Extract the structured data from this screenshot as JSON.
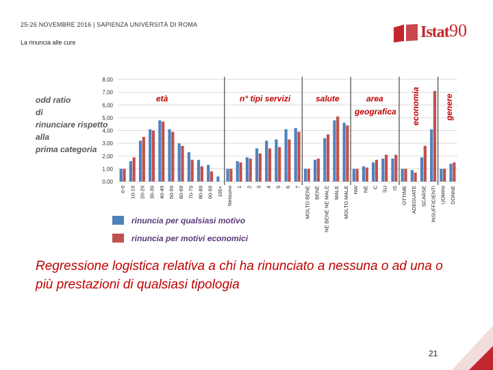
{
  "header": {
    "event": "25-26 NOVEMBRE 2016 | SAPIENZA UNIVERSITÀ DI ROMA",
    "subtitle": "La rinuncia alle cure"
  },
  "logo": {
    "text": "Istat",
    "number": "90",
    "accent": "#c1272d"
  },
  "caption": "Regressione logistica relativa a chi ha rinunciato a nessuna o ad una o più prestazioni di qualsiasi tipologia",
  "page_number": "21",
  "colors": {
    "series1": "#4f81bd",
    "series2": "#c0504d",
    "label_red": "#c00000"
  },
  "chart_data": {
    "type": "bar",
    "ylabel": "odd ratio di rinunciare rispetto alla prima categoria",
    "ylim": [
      0,
      8
    ],
    "yticks": [
      "0,00",
      "1,00",
      "2,00",
      "3,00",
      "4,00",
      "5,00",
      "6,00",
      "7,00",
      "8,00"
    ],
    "group_labels": [
      "età",
      "n° tipi servizi",
      "salute",
      "area geografica",
      "economia",
      "genere"
    ],
    "categories": [
      "0-9",
      "10-19",
      "20-29",
      "30-39",
      "40-49",
      "50-59",
      "60-69",
      "70-79",
      "80-89",
      "90-99",
      "100+",
      "Nessuno",
      "1",
      "2",
      "3",
      "4",
      "5",
      "6",
      "7",
      "MOLTO BENE",
      "BENE",
      "NE BENE NE MALE",
      "MALE",
      "MOLTO MALE",
      "NW",
      "NE",
      "C",
      "SU",
      "IS",
      "OTTIME",
      "ADEGUATE",
      "SCARSE",
      "INSUFFICIENTI",
      "UOMINI",
      "DONNE"
    ],
    "series": [
      {
        "name": "rinuncia per qualsiasi motivo",
        "values": [
          1.0,
          1.6,
          3.2,
          4.1,
          4.8,
          4.1,
          3.0,
          2.3,
          1.7,
          1.3,
          0.4,
          1.0,
          1.6,
          1.9,
          2.6,
          3.2,
          3.3,
          4.1,
          4.2,
          1.0,
          1.7,
          3.4,
          4.8,
          4.6,
          1.0,
          1.2,
          1.5,
          1.8,
          1.8,
          1.0,
          0.9,
          1.9,
          4.1,
          1.0,
          1.4
        ],
        "values_dummy": null
      },
      {
        "name": "rinuncia per motivi economici",
        "values": [
          1.0,
          1.9,
          3.5,
          4.0,
          4.7,
          3.9,
          2.8,
          1.7,
          1.2,
          0.8,
          null,
          1.0,
          1.5,
          1.8,
          2.2,
          2.6,
          2.7,
          3.3,
          3.9,
          1.0,
          1.8,
          3.7,
          5.1,
          4.4,
          1.0,
          1.1,
          1.7,
          2.1,
          2.1,
          1.0,
          0.7,
          2.8,
          7.1,
          1.0,
          1.5
        ]
      }
    ],
    "grid": true,
    "legend_placement": "bottom-left"
  }
}
